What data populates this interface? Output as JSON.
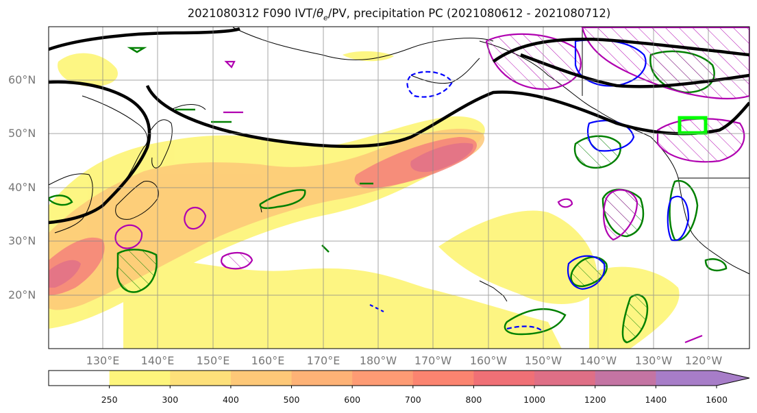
{
  "title": {
    "prefix": "2021080312 F090 IVT/",
    "theta": "θ",
    "sub": "e",
    "suffix": "/PV, precipitation PC (2021080612 - 2021080712)"
  },
  "lat_labels": [
    "60°N",
    "50°N",
    "40°N",
    "30°N",
    "20°N"
  ],
  "lon_labels": [
    "130°E",
    "140°E",
    "150°E",
    "160°E",
    "170°E",
    "180°W",
    "170°W",
    "160°W",
    "150°W",
    "140°W",
    "130°W",
    "120°W"
  ],
  "colorbar": {
    "ticks": [
      "250",
      "300",
      "400",
      "500",
      "600",
      "700",
      "800",
      "1000",
      "1200",
      "1400",
      "1600"
    ],
    "colors": [
      "#ffffff",
      "#fdf57c",
      "#fde07a",
      "#fdc878",
      "#fdb276",
      "#fd9b74",
      "#fb8470",
      "#f07076",
      "#df6f86",
      "#c474a3",
      "#a77dc8"
    ]
  },
  "colors": {
    "ivt_low": "#fdf57c",
    "ivt_high": "#ef6f7a",
    "pv_contour": "#000000",
    "theta_e_contour": "#0000ff",
    "precip_pos": "#008000",
    "precip_neg": "#b000b0",
    "target_box": "#00ff00"
  }
}
